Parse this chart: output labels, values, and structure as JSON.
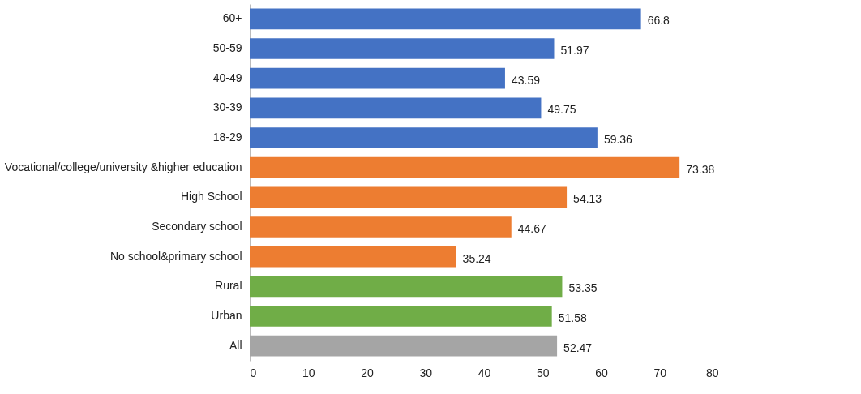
{
  "chart_data": {
    "type": "bar",
    "orientation": "horizontal",
    "categories": [
      "60+",
      "50-59",
      "40-49",
      "30-39",
      "18-29",
      "Vocational/college/university &higher education",
      "High School",
      "Secondary school",
      "No school&primary school",
      "Rural",
      "Urban",
      "All"
    ],
    "values": [
      66.8,
      51.97,
      43.59,
      49.75,
      59.36,
      73.38,
      54.13,
      44.67,
      35.24,
      53.35,
      51.58,
      52.47
    ],
    "colors": [
      "#4472c4",
      "#4472c4",
      "#4472c4",
      "#4472c4",
      "#4472c4",
      "#ed7d31",
      "#ed7d31",
      "#ed7d31",
      "#ed7d31",
      "#70ad47",
      "#70ad47",
      "#a5a5a5"
    ],
    "xlim": [
      0,
      80
    ],
    "xticks": [
      0,
      10,
      20,
      30,
      40,
      50,
      60,
      70,
      80
    ],
    "data_labels": true
  }
}
